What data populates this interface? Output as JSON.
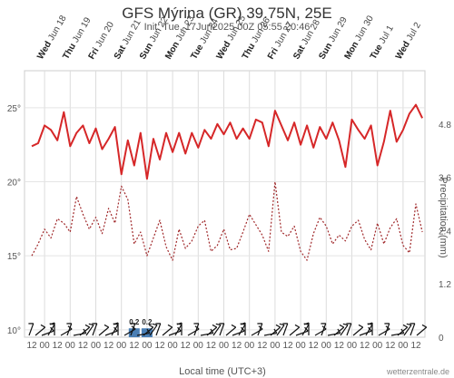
{
  "title": "GFS Mýrina (GR) 39.75N, 25E",
  "subtitle": "Init: Tue, 17Jun2025 00Z 05:55 20:46",
  "xlabel": "Local time (UTC+3)",
  "y2label": "Precipitation (mm)",
  "credit": "wetterzentrale.de",
  "colors": {
    "temperature": "#d62728",
    "dewpoint": "#a0282a",
    "precip": "#4a7fb5",
    "grid": "#dcdcdc",
    "wind": "#111111"
  },
  "chart_data": {
    "type": "line",
    "x": [
      0,
      0.25,
      0.5,
      0.75,
      1,
      1.25,
      1.5,
      1.75,
      2,
      2.25,
      2.5,
      2.75,
      3,
      3.25,
      3.5,
      3.75,
      4,
      4.25,
      4.5,
      4.75,
      5,
      5.25,
      5.5,
      5.75,
      6,
      6.25,
      6.5,
      6.75,
      7,
      7.25,
      7.5,
      7.75,
      8,
      8.25,
      8.5,
      8.75,
      9,
      9.25,
      9.5,
      9.75,
      10,
      10.25,
      10.5,
      10.75,
      11,
      11.25,
      11.5,
      11.75,
      12,
      12.25,
      12.5,
      12.75,
      13,
      13.25,
      13.5,
      13.75,
      14,
      14.25,
      14.5,
      14.75,
      15,
      15.25
    ],
    "x_unit": "days from Jun 17 12:00 local",
    "ylim": [
      9.5,
      27.5
    ],
    "y2lim": [
      0,
      6
    ],
    "yticks": [
      "10°",
      "15°",
      "20°",
      "25°"
    ],
    "y2ticks": [
      "0",
      "1.2",
      "2.4",
      "3.6",
      "4.8"
    ],
    "day_labels": [
      {
        "dow": "Wed",
        "date": "Jun 18"
      },
      {
        "dow": "Thu",
        "date": "Jun 19"
      },
      {
        "dow": "Fri",
        "date": "Jun 20"
      },
      {
        "dow": "Sat",
        "date": "Jun 21"
      },
      {
        "dow": "Sun",
        "date": "Jun 22"
      },
      {
        "dow": "Mon",
        "date": "Jun 23"
      },
      {
        "dow": "Tue",
        "date": "Jun 24"
      },
      {
        "dow": "Wed",
        "date": "Jun 25"
      },
      {
        "dow": "Thu",
        "date": "Jun 26"
      },
      {
        "dow": "Fri",
        "date": "Jun 27"
      },
      {
        "dow": "Sat",
        "date": "Jun 28"
      },
      {
        "dow": "Sun",
        "date": "Jun 29"
      },
      {
        "dow": "Mon",
        "date": "Jun 30"
      },
      {
        "dow": "Tue",
        "date": "Jul 1"
      },
      {
        "dow": "Wed",
        "date": "Jul 2"
      }
    ],
    "hour_labels": [
      "12",
      "00"
    ],
    "series": [
      {
        "kind": "temperature",
        "values": [
          22.4,
          22.6,
          23.8,
          23.5,
          22.8,
          24.7,
          22.4,
          23.3,
          23.8,
          22.6,
          23.6,
          22.2,
          22.9,
          23.7,
          20.5,
          22.8,
          21.1,
          23.3,
          20.2,
          22.9,
          21.5,
          23.3,
          22.0,
          23.3,
          21.9,
          23.3,
          22.3,
          23.5,
          22.9,
          23.9,
          23.2,
          24.0,
          22.9,
          23.6,
          22.9,
          24.2,
          24.0,
          22.4,
          24.8,
          23.8,
          22.8,
          24.0,
          22.5,
          23.8,
          22.3,
          23.7,
          22.9,
          24.0,
          22.8,
          21.0,
          24.2,
          23.5,
          22.9,
          23.8,
          21.1,
          22.7,
          24.8,
          22.7,
          23.5,
          24.6,
          25.2,
          24.3
        ]
      },
      {
        "kind": "dewpoint",
        "values": [
          15.0,
          15.8,
          16.8,
          16.2,
          17.5,
          17.2,
          16.6,
          19.0,
          17.8,
          16.8,
          17.6,
          16.5,
          18.2,
          17.2,
          19.7,
          18.8,
          15.8,
          16.6,
          15.0,
          16.2,
          17.4,
          15.6,
          14.7,
          16.8,
          15.5,
          16.0,
          17.0,
          17.4,
          15.3,
          15.7,
          16.8,
          15.4,
          15.5,
          16.6,
          17.8,
          17.1,
          16.4,
          15.3,
          20.0,
          16.6,
          16.3,
          17.0,
          15.3,
          14.7,
          16.5,
          17.6,
          17.0,
          15.8,
          16.4,
          16.0,
          17.0,
          17.4,
          16.1,
          15.4,
          17.2,
          15.8,
          16.9,
          17.5,
          15.7,
          15.2,
          18.5,
          16.6
        ]
      }
    ],
    "precip_bars": [
      {
        "x": 4.0,
        "value": 0.2,
        "label": "0.2"
      },
      {
        "x": 4.5,
        "value": 0.2,
        "label": "0.2"
      }
    ]
  }
}
